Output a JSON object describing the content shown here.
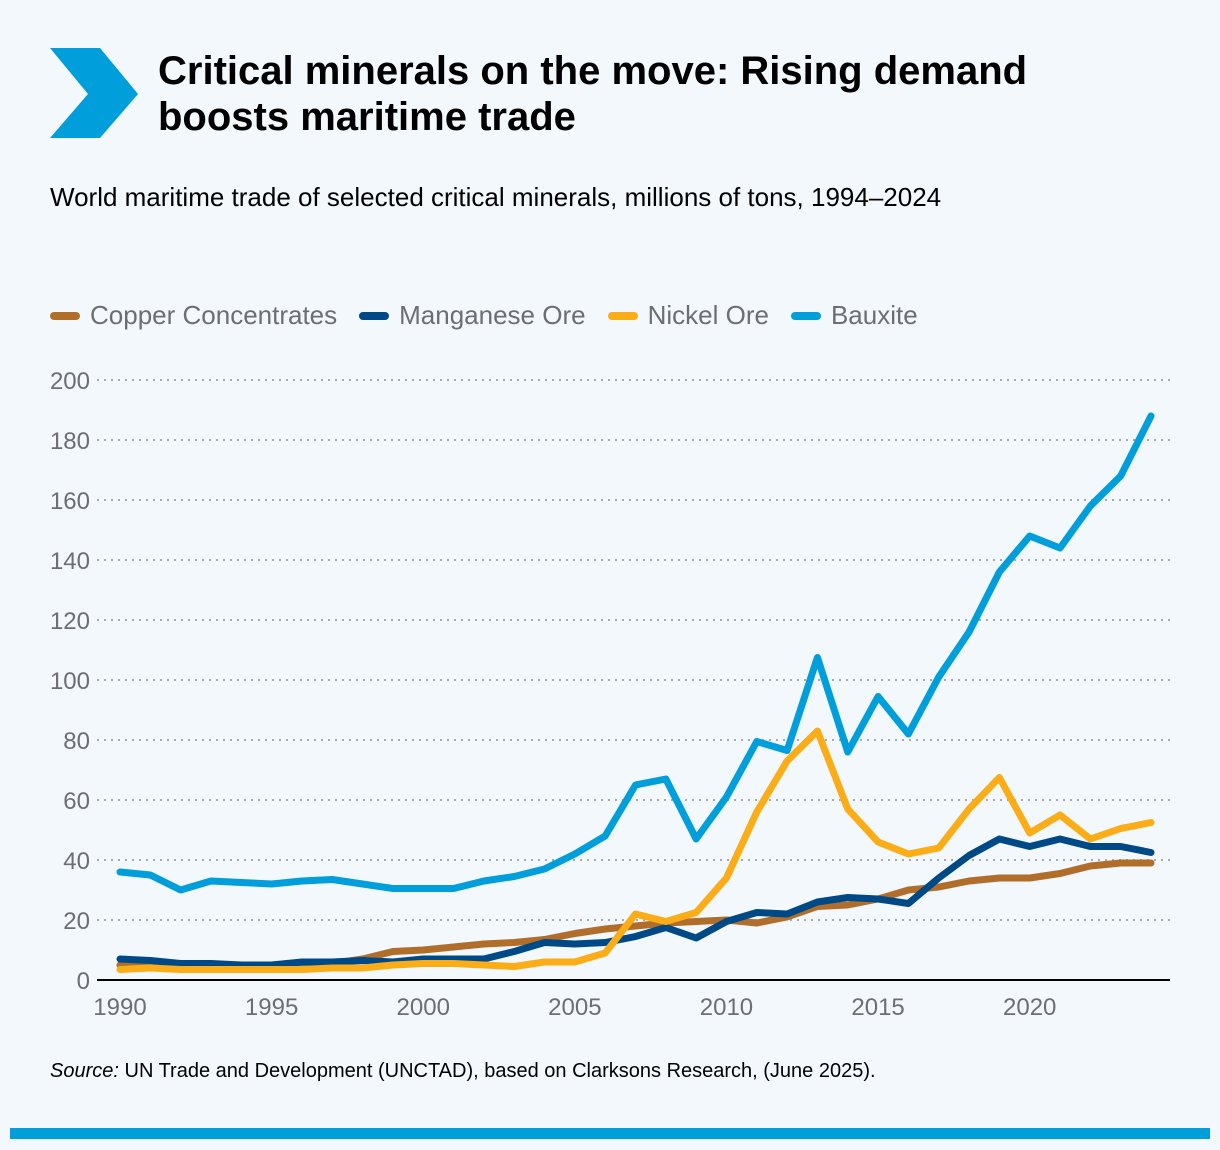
{
  "header": {
    "title": "Critical minerals on the move: Rising demand boosts maritime trade",
    "icon": "chevron-right-icon"
  },
  "colors": {
    "accent": "#009edb",
    "background": "#f3f8fc"
  },
  "chart_data": {
    "type": "line",
    "title": "Critical minerals on the move: Rising demand boosts maritime trade",
    "subtitle": "World maritime trade of selected critical minerals, millions of tons, 1994–2024",
    "xlabel": "",
    "ylabel": "",
    "xlim": [
      1990,
      2024
    ],
    "ylim": [
      0,
      200
    ],
    "xticks": [
      1990,
      1995,
      2000,
      2005,
      2010,
      2015,
      2020
    ],
    "yticks": [
      0,
      20,
      40,
      60,
      80,
      100,
      120,
      140,
      160,
      180,
      200
    ],
    "grid": "horizontal dotted",
    "legend_position": "top-left",
    "x": [
      1990,
      1991,
      1992,
      1993,
      1994,
      1995,
      1996,
      1997,
      1998,
      1999,
      2000,
      2001,
      2002,
      2003,
      2004,
      2005,
      2006,
      2007,
      2008,
      2009,
      2010,
      2011,
      2012,
      2013,
      2014,
      2015,
      2016,
      2017,
      2018,
      2019,
      2020,
      2021,
      2022,
      2023,
      2024
    ],
    "series": [
      {
        "name": "Copper Concentrates",
        "color": "#b06e2a",
        "values": [
          5,
          5,
          4.5,
          4.5,
          5,
          5,
          5,
          5.5,
          7,
          9.5,
          10,
          11,
          12,
          12.5,
          13.5,
          15.5,
          17,
          18,
          19,
          19.5,
          20,
          19,
          21,
          24.5,
          25,
          27,
          30,
          31,
          33,
          34,
          34,
          35.5,
          38,
          39,
          39
        ]
      },
      {
        "name": "Manganese Ore",
        "color": "#004987",
        "values": [
          7,
          6.5,
          5.5,
          5.5,
          5,
          5,
          6,
          6,
          6.5,
          6,
          7,
          7,
          7,
          9.5,
          12.5,
          12,
          12.5,
          14.5,
          17.5,
          14,
          19.5,
          22.5,
          22,
          26,
          27.5,
          27,
          25.5,
          34,
          41.5,
          47,
          44.5,
          47,
          44.5,
          44.5,
          42.5
        ]
      },
      {
        "name": "Nickel Ore",
        "color": "#fbad18",
        "values": [
          3.5,
          4,
          3.5,
          3.5,
          3.5,
          3.5,
          3.5,
          4,
          4,
          5,
          5.5,
          5.5,
          5,
          4.5,
          6,
          6,
          9,
          22,
          19.5,
          22.5,
          34,
          56,
          73,
          83,
          57,
          46,
          42,
          44,
          57,
          67.5,
          49,
          55,
          47,
          50.5,
          52.5
        ]
      },
      {
        "name": "Bauxite",
        "color": "#009edb",
        "values": [
          36,
          35,
          30,
          33,
          32.5,
          32,
          33,
          33.5,
          32,
          30.5,
          30.5,
          30.5,
          33,
          34.5,
          37,
          42,
          48,
          65,
          67,
          47,
          61,
          79.5,
          76.5,
          107.5,
          76,
          94.5,
          82,
          101,
          116,
          136,
          148,
          144,
          158,
          168,
          188
        ]
      }
    ]
  },
  "source": {
    "label": "Source:",
    "text": " UN Trade and Development (UNCTAD), based on Clarksons Research, (June 2025)."
  }
}
